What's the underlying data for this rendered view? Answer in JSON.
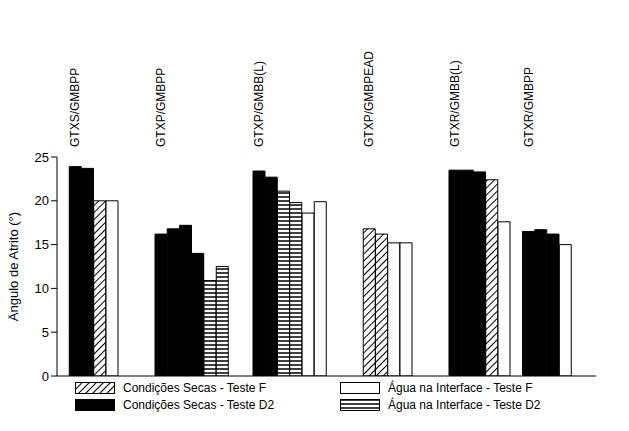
{
  "chart_data": {
    "type": "bar",
    "y_label": "Ângulo de Atrito (°)",
    "categories": [
      null,
      "GTXS/GMBPP",
      null,
      null,
      null,
      null,
      null,
      null,
      "GTXP/GMBPP",
      null,
      null,
      null,
      null,
      null,
      null,
      null,
      "GTXP/GMBB(L)",
      null,
      null,
      null,
      null,
      null,
      null,
      null,
      null,
      "GTXP/GMBPEAD",
      null,
      null,
      null,
      null,
      null,
      null,
      "GTXR/GMBB(L)",
      null,
      null,
      null,
      null,
      null,
      "GTXR/GMBPP",
      null,
      null,
      null,
      null,
      null
    ],
    "series": [
      {
        "name": "Condições Secas - Teste F",
        "color": "#000000",
        "values": [
          null,
          null,
          null,
          20.0,
          null,
          null,
          null,
          null,
          null,
          null,
          null,
          null,
          null,
          null,
          null,
          null,
          null,
          null,
          null,
          null,
          null,
          null,
          null,
          null,
          null,
          16.8,
          16.2,
          null,
          null,
          null,
          null,
          null,
          null,
          null,
          null,
          22.4,
          null,
          null,
          null,
          null,
          null,
          null,
          null,
          null
        ]
      },
      {
        "name": "Água na Interface - Teste F",
        "color": "#ffffff",
        "values": [
          null,
          null,
          null,
          null,
          20.0,
          null,
          null,
          null,
          null,
          null,
          null,
          null,
          null,
          null,
          null,
          null,
          null,
          null,
          null,
          null,
          18.6,
          19.9,
          null,
          null,
          null,
          null,
          null,
          15.2,
          15.2,
          null,
          null,
          null,
          null,
          null,
          null,
          null,
          17.6,
          null,
          null,
          null,
          null,
          15.0,
          null,
          null
        ]
      },
      {
        "name": "Condições Secas - Teste D2",
        "color": "#000000",
        "values": [
          null,
          23.9,
          23.7,
          null,
          null,
          null,
          null,
          null,
          16.2,
          16.8,
          17.2,
          14.0,
          null,
          null,
          null,
          null,
          23.4,
          22.7,
          null,
          null,
          null,
          null,
          null,
          null,
          null,
          null,
          null,
          null,
          null,
          null,
          null,
          null,
          23.5,
          23.5,
          23.3,
          null,
          null,
          null,
          16.5,
          16.7,
          16.2,
          null,
          null,
          null
        ]
      },
      {
        "name": "Água na Interface - Teste D2",
        "color": "#000000",
        "values": [
          null,
          null,
          null,
          null,
          null,
          null,
          null,
          null,
          null,
          null,
          null,
          null,
          10.9,
          12.5,
          null,
          null,
          null,
          null,
          21.1,
          19.8,
          null,
          null,
          null,
          null,
          null,
          null,
          null,
          null,
          null,
          null,
          null,
          null,
          null,
          null,
          null,
          null,
          null,
          null,
          null,
          null,
          null,
          null,
          null,
          null
        ]
      }
    ],
    "ylim": [
      0,
      25
    ],
    "yticks": [
      0,
      5,
      10,
      15,
      20,
      25
    ],
    "legend": "bottom"
  }
}
